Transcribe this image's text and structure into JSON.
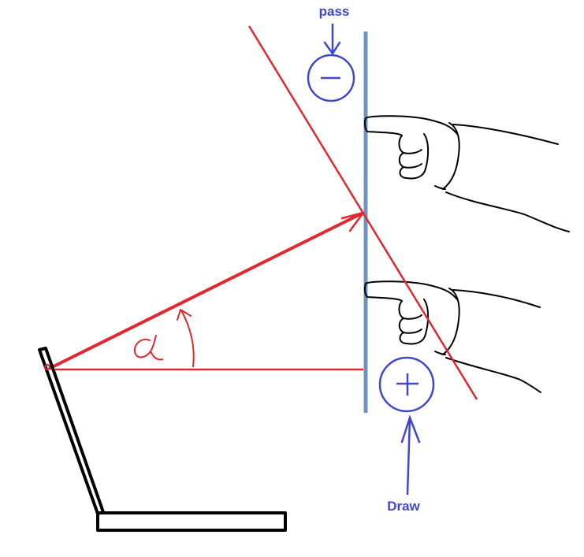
{
  "labels": {
    "top": "pass",
    "bottom": "Draw"
  },
  "symbols": {
    "minus_icon": "minus-circle-icon",
    "plus_icon": "plus-circle-icon",
    "angle_icon": "alpha-glyph-icon"
  },
  "colors": {
    "red": "#e0282e",
    "blue": "#3f48cc",
    "steel": "#7092be",
    "black": "#000000"
  }
}
